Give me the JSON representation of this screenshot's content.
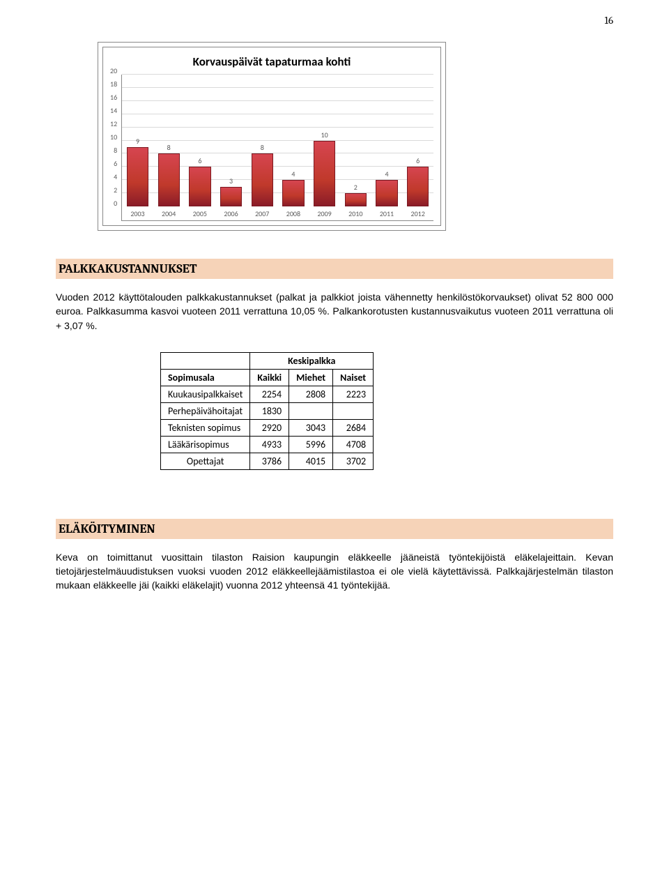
{
  "page_number": "16",
  "chart": {
    "type": "bar",
    "title": "Korvauspäivät tapaturmaa kohti",
    "categories": [
      "2003",
      "2004",
      "2005",
      "2006",
      "2007",
      "2008",
      "2009",
      "2010",
      "2011",
      "2012"
    ],
    "values": [
      9,
      8,
      6,
      3,
      8,
      4,
      10,
      2,
      4,
      6
    ],
    "bar_color": "#c0392b",
    "bar_border": "#7a1820",
    "ylim_max": 20,
    "ytick_step": 2,
    "grid_color": "#d9d9d9",
    "axis_color": "#888888",
    "label_color": "#595959",
    "title_fontsize": 17,
    "label_fontsize": 10,
    "background_color": "#ffffff"
  },
  "section1": {
    "heading": "PALKKAKUSTANNUKSET",
    "para1": "Vuoden 2012 käyttötalouden palkkakustannukset (palkat ja palkkiot joista vähennetty henkilöstökorvaukset) olivat 52 800 000 euroa. Palkkasumma kasvoi vuoteen 2011 verrattuna 10,05 %. Palkankorotusten kustannusvaikutus vuoteen 2011 verrattuna oli + 3,07 %."
  },
  "table": {
    "super_header": "Keskipalkka",
    "headers": [
      "Sopimusala",
      "Kaikki",
      "Miehet",
      "Naiset"
    ],
    "rows": [
      {
        "label": "Kuukausipalkkaiset",
        "c1": "2254",
        "c2": "2808",
        "c3": "2223"
      },
      {
        "label": "Perhepäivähoitajat",
        "c1": "1830",
        "c2": "",
        "c3": ""
      },
      {
        "label": "Teknisten sopimus",
        "c1": "2920",
        "c2": "3043",
        "c3": "2684"
      },
      {
        "label": "Lääkärisopimus",
        "c1": "4933",
        "c2": "5996",
        "c3": "4708"
      },
      {
        "label": "Opettajat",
        "c1": "3786",
        "c2": "4015",
        "c3": "3702"
      }
    ]
  },
  "section2": {
    "heading": "ELÄKÖITYMINEN",
    "para1": "Keva on toimittanut vuosittain tilaston Raision kaupungin eläkkeelle jääneistä työntekijöistä eläkelajeittain. Kevan tietojärjestelmäuudistuksen vuoksi vuoden 2012 eläkkeellejäämistilastoa ei ole vielä käytettävissä. Palkkajärjestelmän tilaston mukaan eläkkeelle jäi (kaikki eläkelajit) vuonna 2012 yhteensä 41 työntekijää."
  }
}
